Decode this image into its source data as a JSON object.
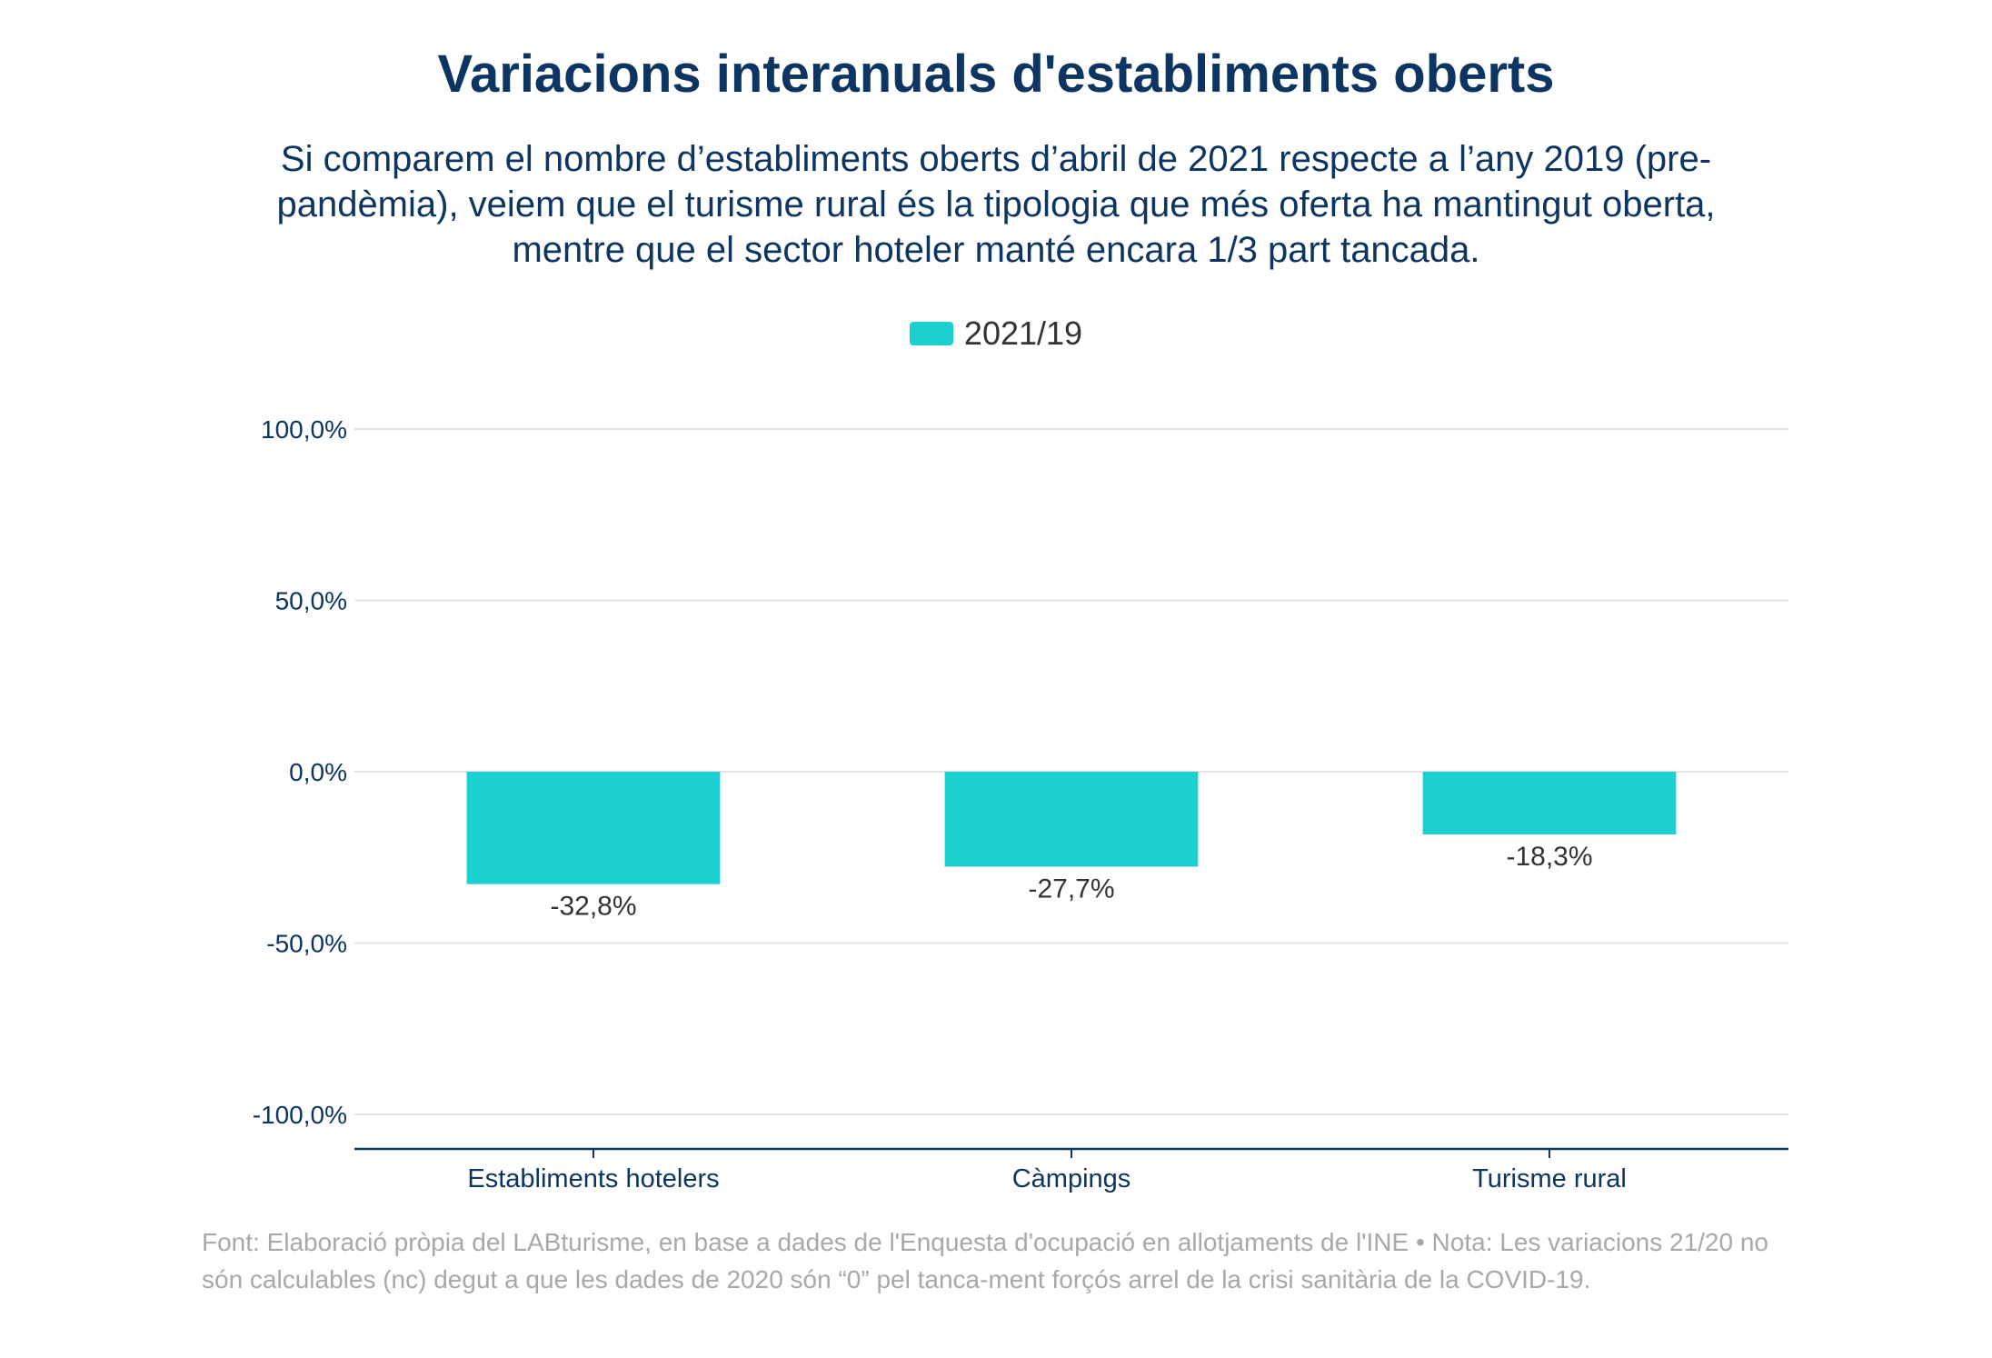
{
  "title": "Variacions interanuals d'establiments oberts",
  "subtitle": "Si comparem el nombre d’establiments oberts d’abril de 2021 respecte a l’any 2019 (pre-pandèmia), veiem que el turisme rural és la tipologia que més oferta ha mantingut oberta, mentre que el sector hoteler manté encara 1/3 part tancada.",
  "footer": "Font: Elaboració pròpia del LABturisme, en base a dades de l'Enquesta d'ocupació en allotjaments de l'INE • Nota: Les variacions 21/20 no són calculables (nc) degut a que les dades de 2020 són “0” pel tanca-ment forçós arrel de la crisi sanitària de la COVID-19.",
  "colors": {
    "bar": "#1ccfd1",
    "title": "#0d3561",
    "axis": "#0d3561",
    "grid": "#e3e3e3",
    "footer": "#a8a8a8"
  },
  "chart_data": {
    "type": "bar",
    "categories": [
      "Establiments hotelers",
      "Càmpings",
      "Turisme rural"
    ],
    "series": [
      {
        "name": "2021/19",
        "values": [
          -32.8,
          -27.7,
          -18.3
        ]
      }
    ],
    "data_labels": [
      "-32,8%",
      "-27,7%",
      "-18,3%"
    ],
    "y_ticks": [
      100,
      50,
      0,
      -50,
      -100
    ],
    "y_tick_labels": [
      "100,0%",
      "50,0%",
      "0,0%",
      "-50,0%",
      "-100,0%"
    ],
    "ylim": [
      -110,
      100
    ],
    "grid": true,
    "legend_position": "top-center"
  }
}
